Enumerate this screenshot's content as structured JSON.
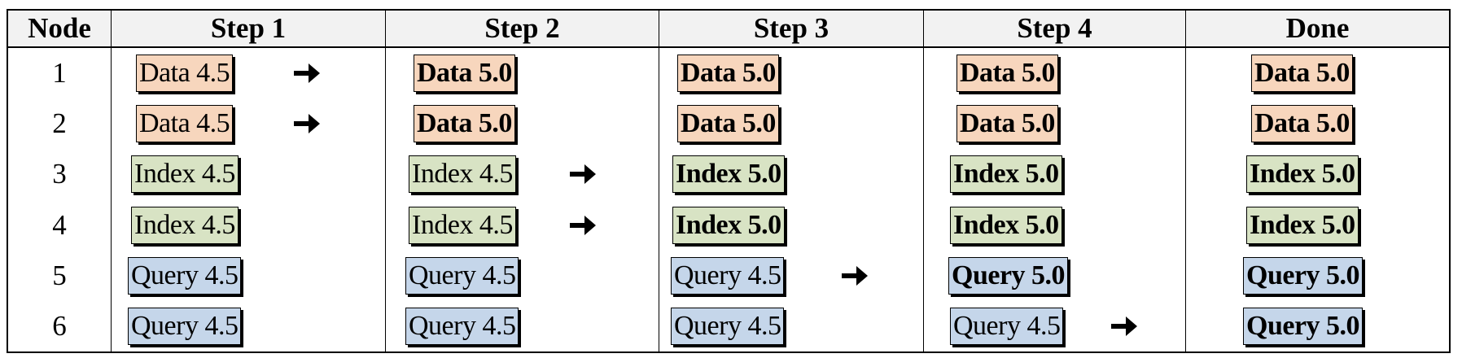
{
  "headers": [
    "Node",
    "Step 1",
    "Step 2",
    "Step 3",
    "Step 4",
    "Done"
  ],
  "nodes": [
    "1",
    "2",
    "3",
    "4",
    "5",
    "6"
  ],
  "colors": {
    "data": "#f7d6bd",
    "index": "#d8e3c4",
    "query": "#c5d6ea",
    "border": "#000000",
    "header_bg": "#f2f2f2"
  },
  "arrow_icon": "right-arrow-icon",
  "steps": [
    {
      "cells": [
        {
          "label": "Data 4.5",
          "type": "data",
          "upgraded": false,
          "arrow": true
        },
        {
          "label": "Data 4.5",
          "type": "data",
          "upgraded": false,
          "arrow": true
        },
        {
          "label": "Index 4.5",
          "type": "index",
          "upgraded": false,
          "arrow": false
        },
        {
          "label": "Index 4.5",
          "type": "index",
          "upgraded": false,
          "arrow": false
        },
        {
          "label": "Query 4.5",
          "type": "query",
          "upgraded": false,
          "arrow": false
        },
        {
          "label": "Query 4.5",
          "type": "query",
          "upgraded": false,
          "arrow": false
        }
      ]
    },
    {
      "cells": [
        {
          "label": "Data 5.0",
          "type": "data",
          "upgraded": true,
          "arrow": false
        },
        {
          "label": "Data 5.0",
          "type": "data",
          "upgraded": true,
          "arrow": false
        },
        {
          "label": "Index 4.5",
          "type": "index",
          "upgraded": false,
          "arrow": true
        },
        {
          "label": "Index 4.5",
          "type": "index",
          "upgraded": false,
          "arrow": true
        },
        {
          "label": "Query 4.5",
          "type": "query",
          "upgraded": false,
          "arrow": false
        },
        {
          "label": "Query 4.5",
          "type": "query",
          "upgraded": false,
          "arrow": false
        }
      ]
    },
    {
      "cells": [
        {
          "label": "Data 5.0",
          "type": "data",
          "upgraded": true,
          "arrow": false
        },
        {
          "label": "Data 5.0",
          "type": "data",
          "upgraded": true,
          "arrow": false
        },
        {
          "label": "Index 5.0",
          "type": "index",
          "upgraded": true,
          "arrow": false
        },
        {
          "label": "Index 5.0",
          "type": "index",
          "upgraded": true,
          "arrow": false
        },
        {
          "label": "Query 4.5",
          "type": "query",
          "upgraded": false,
          "arrow": true
        },
        {
          "label": "Query 4.5",
          "type": "query",
          "upgraded": false,
          "arrow": false
        }
      ]
    },
    {
      "cells": [
        {
          "label": "Data 5.0",
          "type": "data",
          "upgraded": true,
          "arrow": false
        },
        {
          "label": "Data 5.0",
          "type": "data",
          "upgraded": true,
          "arrow": false
        },
        {
          "label": "Index 5.0",
          "type": "index",
          "upgraded": true,
          "arrow": false
        },
        {
          "label": "Index 5.0",
          "type": "index",
          "upgraded": true,
          "arrow": false
        },
        {
          "label": "Query 5.0",
          "type": "query",
          "upgraded": true,
          "arrow": false
        },
        {
          "label": "Query 4.5",
          "type": "query",
          "upgraded": false,
          "arrow": true
        }
      ]
    },
    {
      "cells": [
        {
          "label": "Data 5.0",
          "type": "data",
          "upgraded": true,
          "arrow": false
        },
        {
          "label": "Data 5.0",
          "type": "data",
          "upgraded": true,
          "arrow": false
        },
        {
          "label": "Index 5.0",
          "type": "index",
          "upgraded": true,
          "arrow": false
        },
        {
          "label": "Index 5.0",
          "type": "index",
          "upgraded": true,
          "arrow": false
        },
        {
          "label": "Query 5.0",
          "type": "query",
          "upgraded": true,
          "arrow": false
        },
        {
          "label": "Query 5.0",
          "type": "query",
          "upgraded": true,
          "arrow": false
        }
      ]
    }
  ]
}
